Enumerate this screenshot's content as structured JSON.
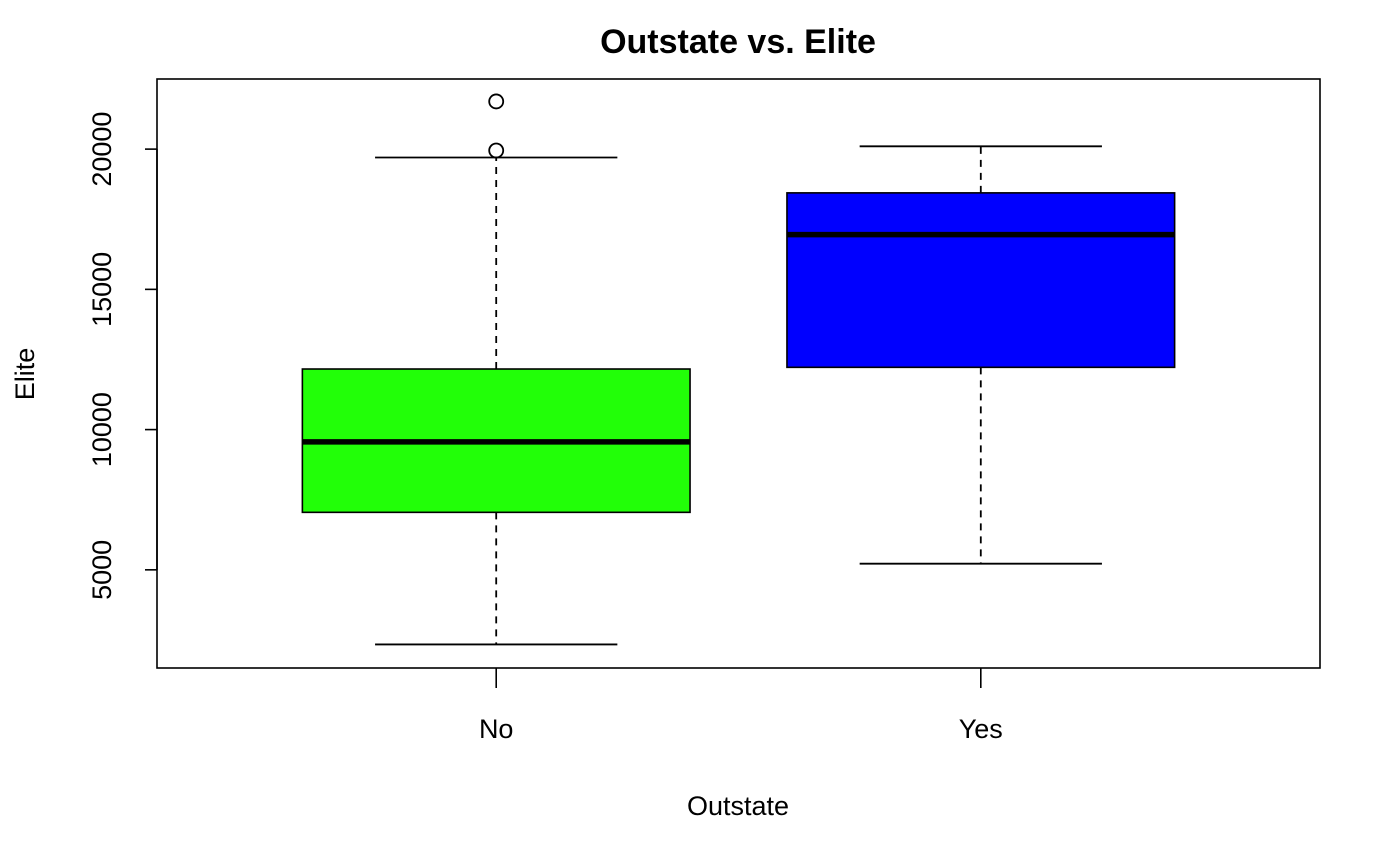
{
  "chart_data": {
    "type": "boxplot",
    "title": "Outstate vs. Elite",
    "xlabel": "Outstate",
    "ylabel": "Elite",
    "ylim": [
      1500,
      22500
    ],
    "yticks": [
      5000,
      10000,
      15000,
      20000
    ],
    "yticklabels": [
      "5000",
      "10000",
      "15000",
      "20000"
    ],
    "categories": [
      "No",
      "Yes"
    ],
    "grid": false,
    "legend": "none",
    "boxes": [
      {
        "category": "No",
        "color": "#22FF08",
        "whisker_low": 2340,
        "q1": 7050,
        "median": 9560,
        "q3": 12160,
        "whisker_high": 19700,
        "outliers": [
          19950,
          21700
        ]
      },
      {
        "category": "Yes",
        "color": "#0000FF",
        "whisker_low": 5220,
        "q1": 12220,
        "median": 16950,
        "q3": 18440,
        "whisker_high": 20100,
        "outliers": []
      }
    ]
  }
}
